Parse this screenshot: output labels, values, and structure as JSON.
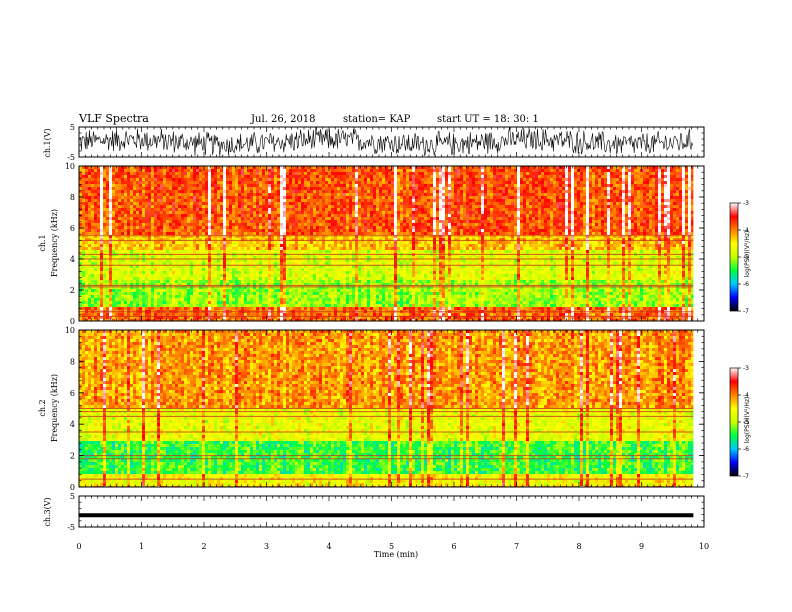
{
  "chart_data": {
    "type": "heatmap",
    "title": "VLF Spectra",
    "date": "Jul. 26, 2018",
    "station": "station= KAP",
    "start_ut": "start UT =  18: 30: 1",
    "xlabel": "Time (min)",
    "xlim": [
      0,
      10
    ],
    "xticks": [
      "0",
      "1",
      "2",
      "3",
      "4",
      "5",
      "6",
      "7",
      "8",
      "9",
      "10"
    ],
    "panels": [
      {
        "id": "ch1-waveform",
        "ylabel": "ch.1(V)",
        "ylim": [
          -5,
          5
        ],
        "yticks": [
          "5",
          "-5"
        ],
        "kind": "waveform"
      },
      {
        "id": "ch1-spectrogram",
        "ylabel_top": "ch.1",
        "ylabel": "Frequency (kHz)",
        "ylim": [
          0,
          10
        ],
        "yticks": [
          "0",
          "2",
          "4",
          "6",
          "8",
          "10"
        ],
        "kind": "spectrogram",
        "bands": [
          {
            "f": [
              0,
              1.0
            ],
            "level": -3.9
          },
          {
            "f": [
              1.0,
              2.6
            ],
            "level": -5.1
          },
          {
            "f": [
              2.6,
              4.6
            ],
            "level": -4.8
          },
          {
            "f": [
              4.6,
              5.6
            ],
            "level": -4.3
          },
          {
            "f": [
              5.6,
              10
            ],
            "level": -3.8
          }
        ],
        "lines_khz": [
          0.3,
          0.6,
          2.2,
          2.3,
          3.6,
          4.0,
          4.3,
          5.2,
          5.5
        ]
      },
      {
        "id": "ch2-spectrogram",
        "ylabel_top": "ch.2",
        "ylabel": "Frequency (kHz)",
        "ylim": [
          0,
          10
        ],
        "yticks": [
          "0",
          "2",
          "4",
          "6",
          "8",
          "10"
        ],
        "kind": "spectrogram",
        "bands": [
          {
            "f": [
              0,
              0.8
            ],
            "level": -4.6
          },
          {
            "f": [
              0.8,
              3.0
            ],
            "level": -5.4
          },
          {
            "f": [
              3.0,
              5.0
            ],
            "level": -4.7
          },
          {
            "f": [
              5.0,
              10
            ],
            "level": -4.1
          }
        ],
        "lines_khz": [
          0.5,
          1.8,
          2.0,
          3.5,
          4.5,
          4.8,
          5.0
        ]
      },
      {
        "id": "ch3-waveform",
        "ylabel": "ch.3(V)",
        "ylim": [
          -5,
          5
        ],
        "yticks": [
          "5",
          "-5"
        ],
        "kind": "flatline",
        "value": -1.2
      }
    ],
    "colorbar": {
      "label": "log(PSD)(V²/Hz)",
      "range": [
        -7,
        -3
      ],
      "ticks": [
        "-3",
        "-4",
        "-5",
        "-6",
        "-7"
      ],
      "colors": [
        "#000000",
        "#0000ff",
        "#00c8ff",
        "#00ff40",
        "#c8ff00",
        "#ffff00",
        "#ff8000",
        "#ff0000",
        "#ffffff"
      ]
    },
    "data_end_min": 9.83
  }
}
